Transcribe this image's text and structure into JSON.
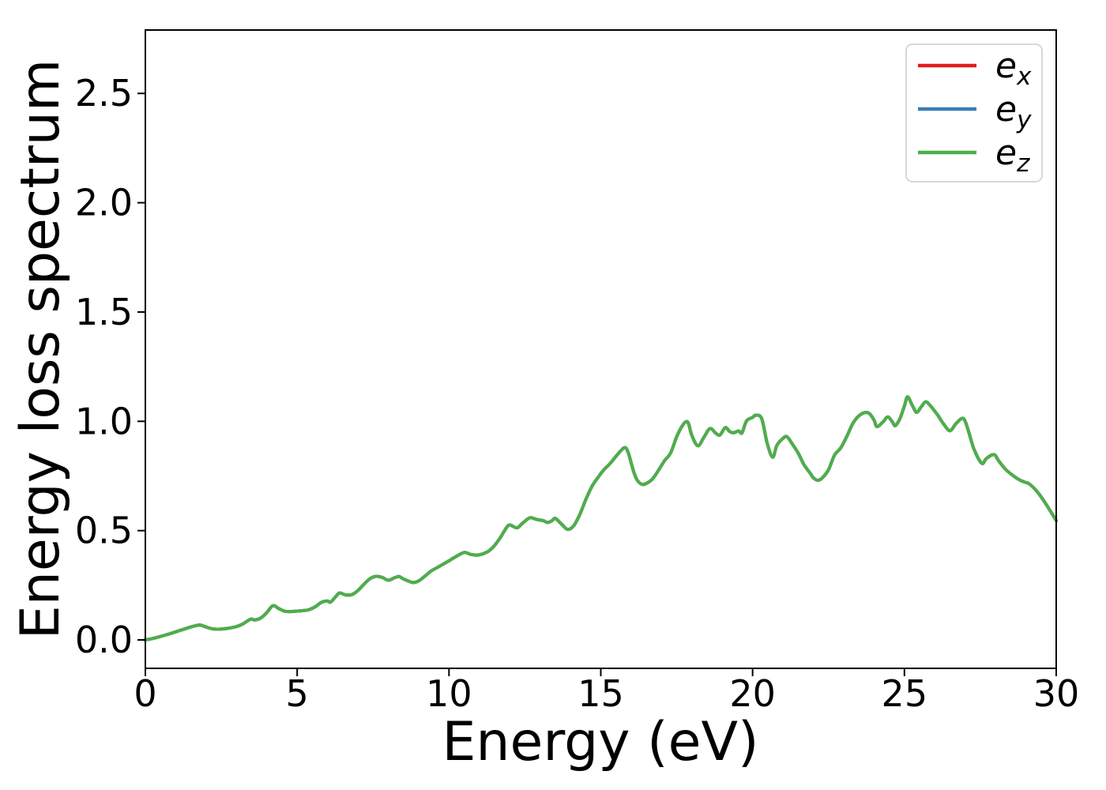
{
  "figure": {
    "background": "#ffffff",
    "spine_color": "#000000"
  },
  "chart_data": {
    "type": "line",
    "title": "",
    "xlabel": "Energy (eV)",
    "ylabel": "Energy loss spectrum",
    "xlim": [
      0,
      30
    ],
    "ylim": [
      -0.13,
      2.79
    ],
    "grid": false,
    "x_axis": {
      "tick_values": [
        0,
        5,
        10,
        15,
        20,
        25,
        30
      ],
      "tick_labels": [
        "0",
        "5",
        "10",
        "15",
        "20",
        "25",
        "30"
      ]
    },
    "y_axis": {
      "tick_values": [
        0.0,
        0.5,
        1.0,
        1.5,
        2.0,
        2.5
      ],
      "tick_labels": [
        "0.0",
        "0.5",
        "1.0",
        "1.5",
        "2.0",
        "2.5"
      ]
    },
    "legend": {
      "position": "upper right",
      "entries": [
        {
          "base": "e",
          "sub": "x",
          "color": "#e41a1c"
        },
        {
          "base": "e",
          "sub": "y",
          "color": "#377eb8"
        },
        {
          "base": "e",
          "sub": "z",
          "color": "#4daf4a"
        }
      ]
    },
    "series": [
      {
        "name": "e_x",
        "color": "#e41a1c",
        "points": "shared"
      },
      {
        "name": "e_y",
        "color": "#377eb8",
        "points": "shared"
      },
      {
        "name": "e_z",
        "color": "#4daf4a",
        "points": "shared"
      }
    ],
    "shared_points": [
      [
        0,
        0
      ],
      [
        0.2,
        0.005
      ],
      [
        0.4,
        0.012
      ],
      [
        0.6,
        0.02
      ],
      [
        0.8,
        0.028
      ],
      [
        1,
        0.037
      ],
      [
        1.2,
        0.046
      ],
      [
        1.4,
        0.055
      ],
      [
        1.6,
        0.063
      ],
      [
        1.8,
        0.068
      ],
      [
        2,
        0.059
      ],
      [
        2.2,
        0.051
      ],
      [
        2.4,
        0.049
      ],
      [
        2.6,
        0.051
      ],
      [
        2.8,
        0.055
      ],
      [
        3,
        0.061
      ],
      [
        3.2,
        0.072
      ],
      [
        3.4,
        0.09
      ],
      [
        3.5,
        0.096
      ],
      [
        3.6,
        0.091
      ],
      [
        3.8,
        0.1
      ],
      [
        4,
        0.125
      ],
      [
        4.2,
        0.157
      ],
      [
        4.4,
        0.143
      ],
      [
        4.6,
        0.131
      ],
      [
        4.8,
        0.13
      ],
      [
        5,
        0.132
      ],
      [
        5.2,
        0.134
      ],
      [
        5.4,
        0.139
      ],
      [
        5.6,
        0.152
      ],
      [
        5.8,
        0.172
      ],
      [
        6,
        0.178
      ],
      [
        6.1,
        0.173
      ],
      [
        6.3,
        0.203
      ],
      [
        6.4,
        0.215
      ],
      [
        6.6,
        0.206
      ],
      [
        6.8,
        0.207
      ],
      [
        7,
        0.226
      ],
      [
        7.2,
        0.255
      ],
      [
        7.4,
        0.28
      ],
      [
        7.6,
        0.291
      ],
      [
        7.8,
        0.286
      ],
      [
        8,
        0.273
      ],
      [
        8.2,
        0.284
      ],
      [
        8.35,
        0.29
      ],
      [
        8.5,
        0.279
      ],
      [
        8.8,
        0.263
      ],
      [
        9,
        0.27
      ],
      [
        9.2,
        0.291
      ],
      [
        9.4,
        0.314
      ],
      [
        9.6,
        0.33
      ],
      [
        9.8,
        0.346
      ],
      [
        10,
        0.362
      ],
      [
        10.2,
        0.379
      ],
      [
        10.5,
        0.4
      ],
      [
        10.7,
        0.392
      ],
      [
        10.9,
        0.388
      ],
      [
        11.1,
        0.393
      ],
      [
        11.3,
        0.406
      ],
      [
        11.5,
        0.432
      ],
      [
        11.7,
        0.47
      ],
      [
        11.9,
        0.515
      ],
      [
        12,
        0.526
      ],
      [
        12.1,
        0.52
      ],
      [
        12.25,
        0.513
      ],
      [
        12.4,
        0.531
      ],
      [
        12.6,
        0.554
      ],
      [
        12.7,
        0.559
      ],
      [
        12.9,
        0.551
      ],
      [
        13.1,
        0.546
      ],
      [
        13.25,
        0.537
      ],
      [
        13.4,
        0.546
      ],
      [
        13.5,
        0.556
      ],
      [
        13.7,
        0.531
      ],
      [
        13.9,
        0.506
      ],
      [
        14.1,
        0.521
      ],
      [
        14.3,
        0.571
      ],
      [
        14.5,
        0.64
      ],
      [
        14.7,
        0.7
      ],
      [
        14.9,
        0.742
      ],
      [
        15.1,
        0.778
      ],
      [
        15.3,
        0.806
      ],
      [
        15.5,
        0.84
      ],
      [
        15.65,
        0.864
      ],
      [
        15.8,
        0.88
      ],
      [
        15.9,
        0.858
      ],
      [
        16,
        0.81
      ],
      [
        16.1,
        0.762
      ],
      [
        16.2,
        0.731
      ],
      [
        16.35,
        0.712
      ],
      [
        16.5,
        0.716
      ],
      [
        16.7,
        0.736
      ],
      [
        16.9,
        0.776
      ],
      [
        17.1,
        0.82
      ],
      [
        17.3,
        0.855
      ],
      [
        17.5,
        0.93
      ],
      [
        17.7,
        0.983
      ],
      [
        17.83,
        0.999
      ],
      [
        17.9,
        0.985
      ],
      [
        18,
        0.935
      ],
      [
        18.2,
        0.888
      ],
      [
        18.4,
        0.928
      ],
      [
        18.6,
        0.967
      ],
      [
        18.8,
        0.944
      ],
      [
        18.93,
        0.938
      ],
      [
        19.1,
        0.971
      ],
      [
        19.25,
        0.953
      ],
      [
        19.38,
        0.948
      ],
      [
        19.54,
        0.956
      ],
      [
        19.65,
        0.947
      ],
      [
        19.8,
        1.002
      ],
      [
        20,
        1.018
      ],
      [
        20.1,
        1.028
      ],
      [
        20.3,
        1.012
      ],
      [
        20.48,
        0.9
      ],
      [
        20.66,
        0.836
      ],
      [
        20.8,
        0.89
      ],
      [
        21,
        0.922
      ],
      [
        21.13,
        0.93
      ],
      [
        21.3,
        0.898
      ],
      [
        21.5,
        0.855
      ],
      [
        21.7,
        0.8
      ],
      [
        21.9,
        0.762
      ],
      [
        22,
        0.742
      ],
      [
        22.15,
        0.73
      ],
      [
        22.3,
        0.742
      ],
      [
        22.5,
        0.779
      ],
      [
        22.7,
        0.846
      ],
      [
        22.9,
        0.878
      ],
      [
        23.1,
        0.93
      ],
      [
        23.3,
        0.99
      ],
      [
        23.5,
        1.025
      ],
      [
        23.7,
        1.04
      ],
      [
        23.85,
        1.035
      ],
      [
        24,
        1.005
      ],
      [
        24.1,
        0.976
      ],
      [
        24.3,
        0.998
      ],
      [
        24.45,
        1.02
      ],
      [
        24.6,
        0.998
      ],
      [
        24.7,
        0.98
      ],
      [
        24.85,
        1.012
      ],
      [
        25,
        1.07
      ],
      [
        25.1,
        1.112
      ],
      [
        25.25,
        1.076
      ],
      [
        25.4,
        1.041
      ],
      [
        25.55,
        1.066
      ],
      [
        25.7,
        1.089
      ],
      [
        25.85,
        1.072
      ],
      [
        26,
        1.046
      ],
      [
        26.1,
        1.028
      ],
      [
        26.3,
        0.986
      ],
      [
        26.5,
        0.957
      ],
      [
        26.7,
        0.99
      ],
      [
        26.9,
        1.014
      ],
      [
        27,
        1
      ],
      [
        27.1,
        0.96
      ],
      [
        27.3,
        0.87
      ],
      [
        27.55,
        0.808
      ],
      [
        27.7,
        0.83
      ],
      [
        27.95,
        0.848
      ],
      [
        28.1,
        0.82
      ],
      [
        28.3,
        0.785
      ],
      [
        28.5,
        0.76
      ],
      [
        28.7,
        0.74
      ],
      [
        28.85,
        0.728
      ],
      [
        29,
        0.72
      ],
      [
        29.1,
        0.715
      ],
      [
        29.3,
        0.69
      ],
      [
        29.5,
        0.655
      ],
      [
        29.7,
        0.613
      ],
      [
        29.85,
        0.58
      ],
      [
        30,
        0.546
      ]
    ]
  }
}
